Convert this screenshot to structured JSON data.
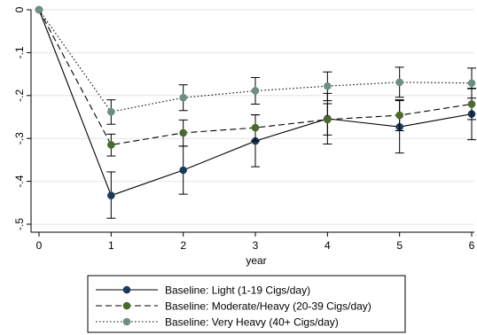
{
  "chart_data": {
    "type": "line",
    "title": "",
    "xlabel": "year",
    "ylabel": "",
    "x": [
      0,
      1,
      2,
      3,
      4,
      5,
      6
    ],
    "xlim": [
      0,
      6
    ],
    "ylim": [
      -0.5,
      0
    ],
    "xticks": [
      "0",
      "1",
      "2",
      "3",
      "4",
      "5",
      "6"
    ],
    "yticks": [
      {
        "value": 0,
        "label": "0"
      },
      {
        "value": -0.1,
        "label": "-.1"
      },
      {
        "value": -0.2,
        "label": "-.2"
      },
      {
        "value": -0.3,
        "label": "-.3"
      },
      {
        "value": -0.4,
        "label": "-.4"
      },
      {
        "value": -0.5,
        "label": "-.5"
      }
    ],
    "grid": true,
    "legend_position": "bottom",
    "series": [
      {
        "name": "Baseline: Light (1-19 Cigs/day)",
        "line_style": "solid",
        "color": "#1a3a5c",
        "values": [
          0,
          -0.433,
          -0.374,
          -0.306,
          -0.254,
          -0.273,
          -0.243
        ],
        "ci_low": [
          0,
          -0.486,
          -0.43,
          -0.366,
          -0.313,
          -0.334,
          -0.303
        ],
        "ci_high": [
          0,
          -0.378,
          -0.318,
          -0.245,
          -0.195,
          -0.212,
          -0.183
        ]
      },
      {
        "name": "Baseline: Moderate/Heavy (20-39 Cigs/day)",
        "line_style": "dashed",
        "color": "#4a6a2a",
        "values": [
          0,
          -0.315,
          -0.287,
          -0.275,
          -0.256,
          -0.246,
          -0.22
        ],
        "ci_low": [
          0,
          -0.341,
          -0.318,
          -0.306,
          -0.292,
          -0.282,
          -0.256
        ],
        "ci_high": [
          0,
          -0.29,
          -0.257,
          -0.245,
          -0.219,
          -0.21,
          -0.184
        ]
      },
      {
        "name": "Baseline: Very Heavy (40+ Cigs/day)",
        "line_style": "dotted",
        "color": "#6e8f80",
        "values": [
          0,
          -0.238,
          -0.205,
          -0.189,
          -0.178,
          -0.169,
          -0.171
        ],
        "ci_low": [
          0,
          -0.267,
          -0.235,
          -0.22,
          -0.212,
          -0.204,
          -0.206
        ],
        "ci_high": [
          0,
          -0.21,
          -0.175,
          -0.158,
          -0.145,
          -0.134,
          -0.136
        ]
      }
    ]
  }
}
